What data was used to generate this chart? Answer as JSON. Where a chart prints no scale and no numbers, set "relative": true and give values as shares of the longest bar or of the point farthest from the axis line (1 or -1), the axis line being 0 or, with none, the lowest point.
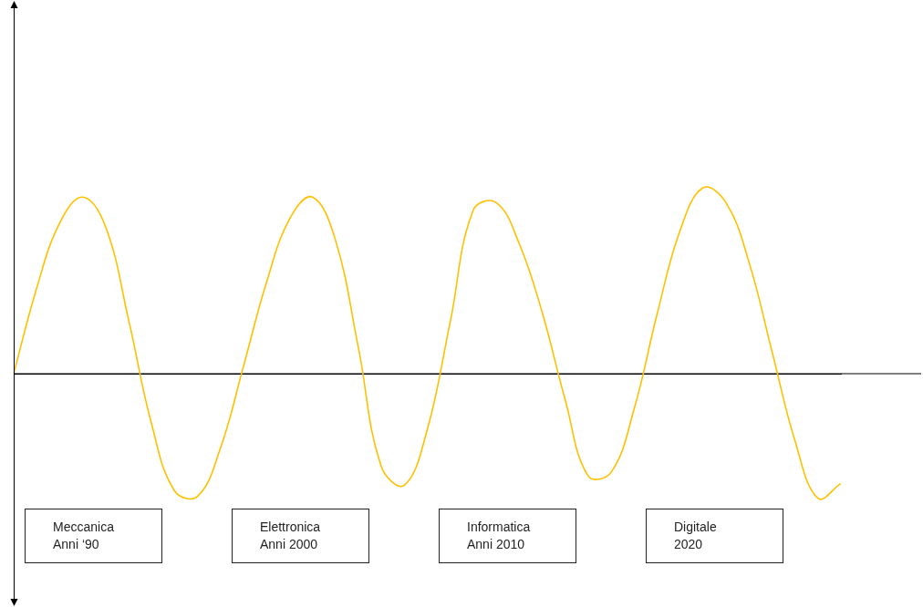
{
  "chart_data": {
    "type": "line",
    "relative": true,
    "categories": [
      null,
      null,
      null,
      null,
      null,
      null,
      null,
      null,
      null,
      null,
      null,
      null,
      null,
      null,
      null,
      null,
      null,
      null,
      null,
      null,
      null,
      null,
      null,
      null,
      null,
      null,
      null,
      null,
      null,
      null,
      null,
      null,
      null,
      null,
      null,
      null,
      null
    ],
    "series": [
      {
        "color": "#ffc000",
        "values": [
          0,
          0.46,
          0.81,
          0.95,
          0.79,
          0.29,
          -0.27,
          -0.63,
          -0.66,
          -0.4,
          0.04,
          0.49,
          0.83,
          0.95,
          0.72,
          0.14,
          -0.5,
          -0.6,
          -0.3,
          0.28,
          0.88,
          0.92,
          0.7,
          0.33,
          -0.14,
          -0.55,
          -0.53,
          -0.19,
          0.32,
          0.77,
          1,
          0.92,
          0.6,
          0.12,
          -0.36,
          -0.67,
          -0.59
        ]
      }
    ],
    "annotations": [
      "Meccanica\nAnni ‘90",
      "Elettronica\nAnni 2000",
      "Informatica\nAnni 2010",
      "Digitale\n2020"
    ],
    "legend": false,
    "marker": "none",
    "line_style": "solid"
  }
}
